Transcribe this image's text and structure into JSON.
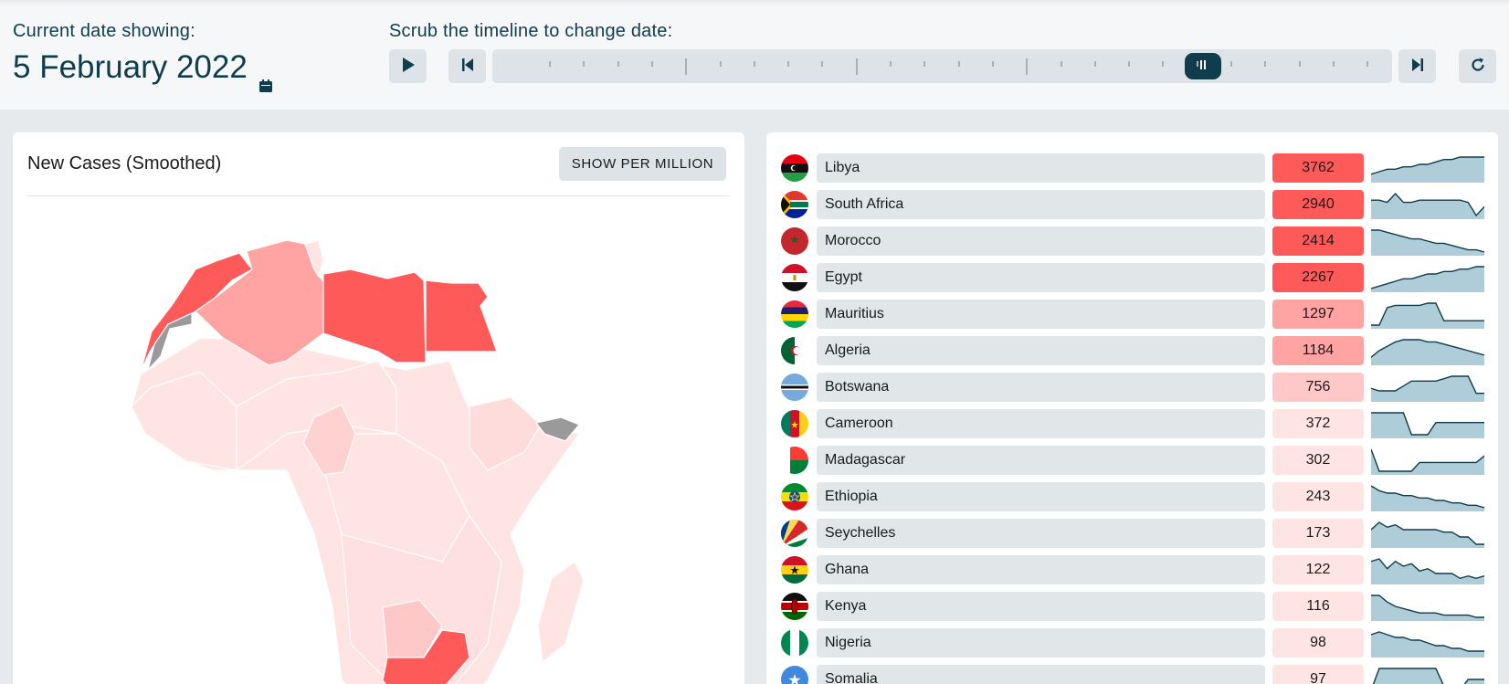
{
  "header": {
    "date_label": "Current date showing:",
    "date_value": "5 February 2022",
    "scrub_label": "Scrub the timeline to change date:",
    "slider_position_fraction": 0.79
  },
  "controls": {
    "play_icon": "play-icon",
    "step_back_icon": "skip-back-icon",
    "step_forward_icon": "skip-forward-icon",
    "reset_icon": "refresh-icon"
  },
  "map_panel": {
    "title": "New Cases (Smoothed)",
    "toggle_label": "SHOW PER MILLION"
  },
  "colors": {
    "accent": "#0f3d4c",
    "scale_high": "#ff5a5a",
    "scale_mid": "#ffa3a3",
    "scale_low": "#ffc8c8",
    "scale_lowest": "#ffe4e4",
    "no_data": "#9a9a9a",
    "sparkline": "#aecdd8"
  },
  "countries": [
    {
      "name": "Libya",
      "value": "3762",
      "color": "#ff5a5a",
      "spark": [
        2,
        3,
        4,
        4,
        5,
        5,
        6,
        6,
        7,
        8,
        8,
        9,
        9,
        9,
        9
      ]
    },
    {
      "name": "South Africa",
      "value": "2940",
      "color": "#ff5a5a",
      "spark": [
        7,
        7,
        6,
        10,
        6,
        6,
        7,
        7,
        7,
        7,
        7,
        7,
        6,
        0,
        4
      ]
    },
    {
      "name": "Morocco",
      "value": "2414",
      "color": "#ff5a5a",
      "spark": [
        10,
        10,
        9,
        8,
        7,
        6,
        6,
        5,
        4,
        4,
        3,
        2,
        1,
        1,
        0
      ]
    },
    {
      "name": "Egypt",
      "value": "2267",
      "color": "#ff5a5a",
      "spark": [
        0,
        1,
        2,
        3,
        4,
        4,
        5,
        6,
        6,
        7,
        7,
        8,
        8,
        9,
        9
      ]
    },
    {
      "name": "Mauritius",
      "value": "1297",
      "color": "#ffa3a3",
      "spark": [
        0,
        0,
        8,
        9,
        9,
        9,
        9,
        10,
        10,
        2,
        2,
        2,
        2,
        2,
        2
      ]
    },
    {
      "name": "Algeria",
      "value": "1184",
      "color": "#ffa3a3",
      "spark": [
        2,
        5,
        7,
        9,
        10,
        10,
        10,
        9,
        9,
        8,
        7,
        6,
        5,
        4,
        3
      ]
    },
    {
      "name": "Botswana",
      "value": "756",
      "color": "#ffc8c8",
      "spark": [
        4,
        3,
        3,
        3,
        5,
        7,
        7,
        7,
        7,
        8,
        9,
        9,
        9,
        2,
        2
      ]
    },
    {
      "name": "Cameroon",
      "value": "372",
      "color": "#ffe4e4",
      "spark": [
        9,
        9,
        9,
        9,
        9,
        0,
        0,
        0,
        5,
        5,
        5,
        5,
        5,
        5,
        5
      ]
    },
    {
      "name": "Madagascar",
      "value": "302",
      "color": "#ffe4e4",
      "spark": [
        10,
        0,
        0,
        0,
        0,
        0,
        4,
        4,
        4,
        4,
        4,
        4,
        4,
        4,
        7
      ]
    },
    {
      "name": "Ethiopia",
      "value": "243",
      "color": "#ffe4e4",
      "spark": [
        9,
        7,
        6,
        6,
        5,
        5,
        4,
        4,
        3,
        3,
        2,
        2,
        1,
        1,
        0
      ]
    },
    {
      "name": "Seychelles",
      "value": "173",
      "color": "#ffe4e4",
      "spark": [
        6,
        9,
        7,
        8,
        6,
        6,
        6,
        6,
        6,
        5,
        5,
        3,
        3,
        0,
        0
      ]
    },
    {
      "name": "Ghana",
      "value": "122",
      "color": "#ffe4e4",
      "spark": [
        8,
        9,
        5,
        8,
        6,
        7,
        4,
        5,
        3,
        3,
        3,
        1,
        2,
        1,
        2
      ]
    },
    {
      "name": "Kenya",
      "value": "116",
      "color": "#ffe4e4",
      "spark": [
        10,
        10,
        7,
        5,
        4,
        3,
        2,
        2,
        2,
        1,
        1,
        1,
        1,
        0,
        0
      ]
    },
    {
      "name": "Nigeria",
      "value": "98",
      "color": "#ffe4e4",
      "spark": [
        7,
        8,
        7,
        6,
        6,
        5,
        5,
        4,
        3,
        3,
        2,
        2,
        1,
        1,
        1
      ]
    },
    {
      "name": "Somalia",
      "value": "97",
      "color": "#ffe4e4",
      "spark": [
        0,
        10,
        10,
        10,
        10,
        10,
        10,
        10,
        10,
        2,
        0,
        0,
        5,
        5,
        5
      ]
    }
  ]
}
